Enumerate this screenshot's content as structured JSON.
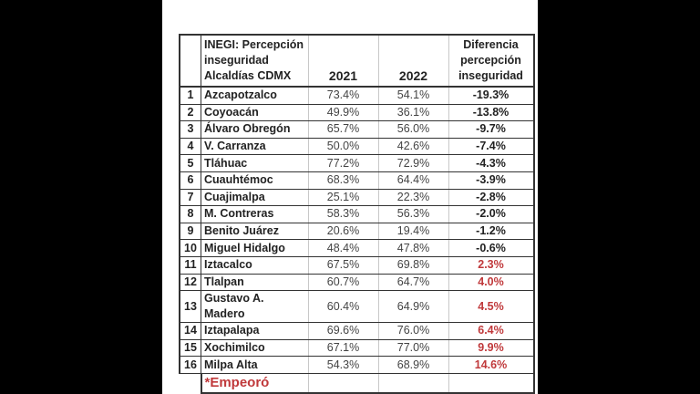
{
  "header": {
    "title_lines": [
      "INEGI: Percepción",
      "inseguridad",
      "Alcaldías CDMX"
    ],
    "col_2021": "2021",
    "col_2022": "2022",
    "diff_lines": [
      "Diferencia",
      "percepción",
      "inseguridad"
    ]
  },
  "rows": [
    {
      "n": "1",
      "name": "Azcapotzalco",
      "y2021": "73.4%",
      "y2022": "54.1%",
      "diff": "-19.3%",
      "worse": false
    },
    {
      "n": "2",
      "name": "Coyoacán",
      "y2021": "49.9%",
      "y2022": "36.1%",
      "diff": "-13.8%",
      "worse": false
    },
    {
      "n": "3",
      "name": "Álvaro Obregón",
      "y2021": "65.7%",
      "y2022": "56.0%",
      "diff": "-9.7%",
      "worse": false
    },
    {
      "n": "4",
      "name": "V. Carranza",
      "y2021": "50.0%",
      "y2022": "42.6%",
      "diff": "-7.4%",
      "worse": false
    },
    {
      "n": "5",
      "name": "Tláhuac",
      "y2021": "77.2%",
      "y2022": "72.9%",
      "diff": "-4.3%",
      "worse": false
    },
    {
      "n": "6",
      "name": "Cuauhtémoc",
      "y2021": "68.3%",
      "y2022": "64.4%",
      "diff": "-3.9%",
      "worse": false
    },
    {
      "n": "7",
      "name": "Cuajimalpa",
      "y2021": "25.1%",
      "y2022": "22.3%",
      "diff": "-2.8%",
      "worse": false
    },
    {
      "n": "8",
      "name": "M. Contreras",
      "y2021": "58.3%",
      "y2022": "56.3%",
      "diff": "-2.0%",
      "worse": false
    },
    {
      "n": "9",
      "name": "Benito Juárez",
      "y2021": "20.6%",
      "y2022": "19.4%",
      "diff": "-1.2%",
      "worse": false
    },
    {
      "n": "10",
      "name": "Miguel Hidalgo",
      "y2021": "48.4%",
      "y2022": "47.8%",
      "diff": "-0.6%",
      "worse": false
    },
    {
      "n": "11",
      "name": "Iztacalco",
      "y2021": "67.5%",
      "y2022": "69.8%",
      "diff": "2.3%",
      "worse": true
    },
    {
      "n": "12",
      "name": "Tlalpan",
      "y2021": "60.7%",
      "y2022": "64.7%",
      "diff": "4.0%",
      "worse": true
    },
    {
      "n": "13",
      "name": "Gustavo A. Madero",
      "y2021": "60.4%",
      "y2022": "64.9%",
      "diff": "4.5%",
      "worse": true
    },
    {
      "n": "14",
      "name": "Iztapalapa",
      "y2021": "69.6%",
      "y2022": "76.0%",
      "diff": "6.4%",
      "worse": true
    },
    {
      "n": "15",
      "name": "Xochimilco",
      "y2021": "67.1%",
      "y2022": "77.0%",
      "diff": "9.9%",
      "worse": true
    },
    {
      "n": "16",
      "name": "Milpa Alta",
      "y2021": "54.3%",
      "y2022": "68.9%",
      "diff": "14.6%",
      "worse": true
    }
  ],
  "footnote": "*Empeoró",
  "colors": {
    "worse": "#c0393b",
    "border": "#333333"
  }
}
